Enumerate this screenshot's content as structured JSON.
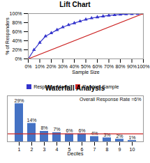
{
  "chart_data": [
    {
      "type": "line",
      "title": "Lift Chart",
      "x_label": "Sample Size",
      "y_label": "% of Responders",
      "xlim": [
        0,
        1
      ],
      "ylim": [
        0,
        1
      ],
      "xticks": [
        {
          "value": 0,
          "label": "0%"
        },
        {
          "value": 0.1,
          "label": "10%"
        },
        {
          "value": 0.2,
          "label": "20%"
        },
        {
          "value": 0.3,
          "label": "30%"
        },
        {
          "value": 0.4,
          "label": "40%"
        },
        {
          "value": 0.5,
          "label": "50%"
        },
        {
          "value": 0.6,
          "label": "60%"
        },
        {
          "value": 0.7,
          "label": "70%"
        },
        {
          "value": 0.8,
          "label": "80%"
        },
        {
          "value": 0.9,
          "label": "90%"
        },
        {
          "value": 1,
          "label": "100%"
        }
      ],
      "yticks": [
        {
          "value": 0,
          "label": "0%"
        },
        {
          "value": 0.2,
          "label": "20%"
        },
        {
          "value": 0.4,
          "label": "40%"
        },
        {
          "value": 0.6,
          "label": "60%"
        },
        {
          "value": 0.8,
          "label": "80%"
        },
        {
          "value": 1,
          "label": "100%"
        }
      ],
      "legend": "bottom",
      "series": [
        {
          "name": "Response Model",
          "color": "#3333cc",
          "marker": "triangle",
          "x": [
            0,
            0.05,
            0.1,
            0.15,
            0.2,
            0.25,
            0.3,
            0.35,
            0.4,
            0.45,
            0.5,
            0.55,
            0.6,
            0.65,
            0.7,
            0.75,
            0.8,
            0.85,
            0.9,
            0.95,
            1.0
          ],
          "values": [
            0,
            0.2,
            0.36,
            0.5,
            0.57,
            0.64,
            0.7,
            0.75,
            0.79,
            0.83,
            0.87,
            0.9,
            0.92,
            0.94,
            0.96,
            0.97,
            0.98,
            0.99,
            0.995,
            0.998,
            1.0
          ]
        },
        {
          "name": "Random Sample",
          "color": "#cc2222",
          "marker": "triangle",
          "x": [
            0,
            1.0
          ],
          "values": [
            0,
            1.0
          ]
        }
      ]
    },
    {
      "type": "bar",
      "title": "Waterfall Analysis",
      "x_label": "Deciles",
      "categories": [
        "1",
        "2",
        "3",
        "4",
        "5",
        "6",
        "7",
        "8",
        "9",
        "10"
      ],
      "values": [
        29,
        14,
        8,
        7,
        6,
        6,
        4,
        3,
        2,
        1
      ],
      "value_labels": [
        "29%",
        "14%",
        "8%",
        "7%",
        "6%",
        "6%",
        "4%",
        "3%",
        "2%",
        "1%"
      ],
      "data_labels": true,
      "color": "#4472c4",
      "ylim": [
        0,
        35
      ],
      "tick_labels": "x",
      "annotations": [
        {
          "text": "Overall Response Rate =6%",
          "y": 6,
          "color": "#cc2222"
        }
      ]
    }
  ]
}
